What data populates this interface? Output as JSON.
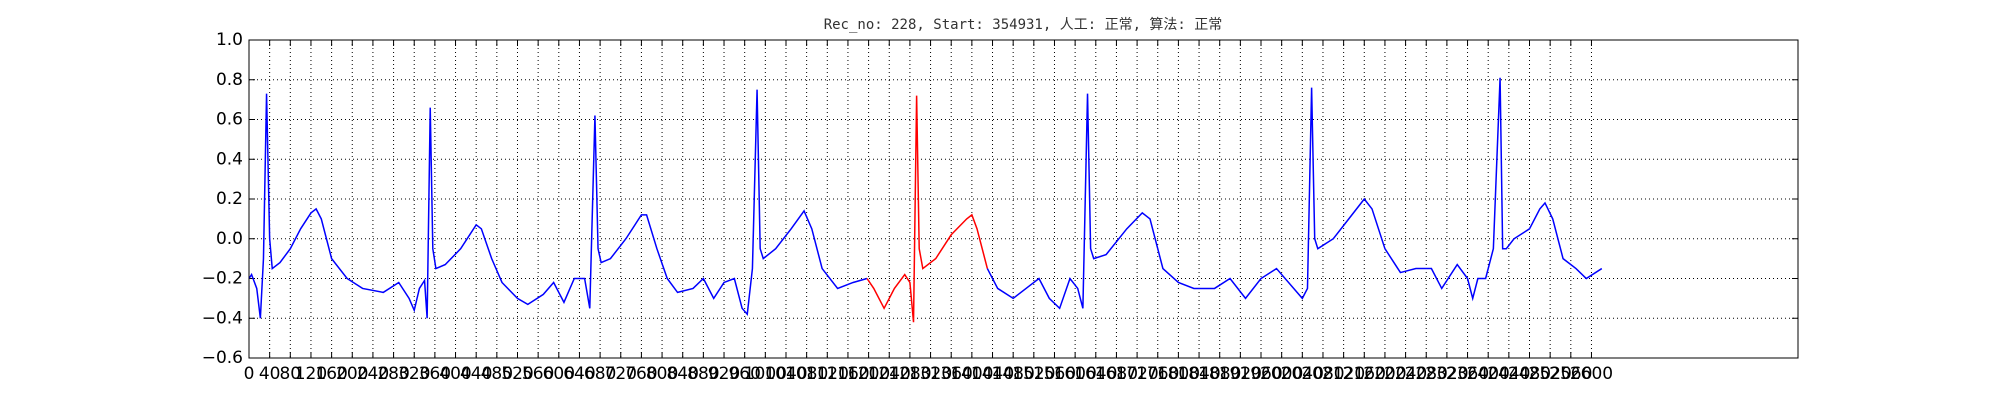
{
  "chart_data": {
    "type": "line",
    "title": "Rec_no: 228, Start: 354931, 人工: 正常, 算法: 正常",
    "xlim": [
      0,
      3000
    ],
    "ylim": [
      -0.6,
      1.0
    ],
    "xticks": [
      0,
      40,
      80,
      120,
      160,
      200,
      240,
      280,
      320,
      360,
      400,
      440,
      480,
      520,
      560,
      600,
      640,
      680,
      720,
      760,
      800,
      840,
      880,
      920,
      960,
      1000,
      1040,
      1080,
      1120,
      1160,
      1200,
      1240,
      1280,
      1320,
      1360,
      1400,
      1440,
      1480,
      1520,
      1560,
      1600,
      1640,
      1680,
      1720,
      1760,
      1800,
      1840,
      1880,
      1920,
      1960,
      2000,
      2040,
      2080,
      2120,
      2160,
      2200,
      2240,
      2280,
      2320,
      2360,
      2400,
      2440,
      2480,
      2520,
      2560,
      2600
    ],
    "yticks": [
      {
        "value": -0.6,
        "label": "−0.6"
      },
      {
        "value": -0.4,
        "label": "−0.4"
      },
      {
        "value": -0.2,
        "label": "−0.2"
      },
      {
        "value": 0.0,
        "label": "0.0"
      },
      0.2,
      0.4,
      0.6,
      0.8,
      {
        "value": 1.0,
        "label": "1.0"
      }
    ],
    "grid": true,
    "series": [
      {
        "color": "#0000ff",
        "x": [
          0,
          5,
          15,
          22,
          28,
          34,
          40,
          45,
          60,
          80,
          100,
          120,
          130,
          140,
          160,
          190,
          220,
          260,
          290,
          310,
          320,
          330,
          340,
          345,
          351,
          356,
          362,
          380,
          410,
          440,
          450,
          470,
          490,
          520,
          540,
          570,
          590,
          610,
          630,
          650,
          660,
          670,
          676,
          682,
          700,
          730,
          760,
          770,
          790,
          810,
          830,
          860,
          880,
          900,
          920,
          940,
          955,
          965,
          975,
          984,
          990,
          996,
          1020,
          1050,
          1075,
          1090,
          1110,
          1140,
          1170,
          1197
        ],
        "values": [
          -0.2,
          -0.18,
          -0.25,
          -0.4,
          -0.1,
          0.73,
          0.0,
          -0.15,
          -0.12,
          -0.05,
          0.05,
          0.13,
          0.15,
          0.1,
          -0.1,
          -0.2,
          -0.25,
          -0.27,
          -0.22,
          -0.3,
          -0.36,
          -0.25,
          -0.21,
          -0.4,
          0.66,
          -0.05,
          -0.15,
          -0.13,
          -0.05,
          0.07,
          0.05,
          -0.1,
          -0.22,
          -0.3,
          -0.33,
          -0.28,
          -0.22,
          -0.32,
          -0.2,
          -0.2,
          -0.35,
          0.62,
          -0.05,
          -0.12,
          -0.1,
          0.0,
          0.12,
          0.12,
          -0.05,
          -0.2,
          -0.27,
          -0.25,
          -0.2,
          -0.3,
          -0.22,
          -0.2,
          -0.35,
          -0.38,
          -0.15,
          0.75,
          -0.05,
          -0.1,
          -0.05,
          0.05,
          0.14,
          0.05,
          -0.15,
          -0.25,
          -0.22,
          -0.2
        ]
      },
      {
        "color": "#ff0000",
        "x": [
          1197,
          1210,
          1230,
          1250,
          1270,
          1280,
          1287,
          1293,
          1298,
          1305,
          1330,
          1360,
          1390,
          1400,
          1410,
          1430
        ],
        "values": [
          -0.2,
          -0.25,
          -0.35,
          -0.25,
          -0.18,
          -0.22,
          -0.42,
          0.72,
          -0.05,
          -0.15,
          -0.1,
          0.02,
          0.1,
          0.12,
          0.05,
          -0.15
        ]
      },
      {
        "color": "#0000ff",
        "x": [
          1430,
          1450,
          1480,
          1510,
          1530,
          1550,
          1570,
          1590,
          1605,
          1615,
          1624,
          1630,
          1636,
          1660,
          1700,
          1730,
          1745,
          1770,
          1800,
          1830,
          1870,
          1900,
          1930,
          1960,
          1990,
          2040,
          2050,
          2058,
          2064,
          2070,
          2100,
          2130,
          2160,
          2175,
          2200,
          2230,
          2260,
          2290,
          2310,
          2340,
          2360,
          2370,
          2380,
          2395,
          2410,
          2423,
          2428,
          2435,
          2450,
          2480,
          2500,
          2510,
          2525,
          2545,
          2570,
          2590,
          2620
        ],
        "values": [
          -0.15,
          -0.25,
          -0.3,
          -0.24,
          -0.2,
          -0.3,
          -0.35,
          -0.2,
          -0.25,
          -0.35,
          0.73,
          -0.05,
          -0.1,
          -0.08,
          0.05,
          0.13,
          0.1,
          -0.15,
          -0.22,
          -0.25,
          -0.25,
          -0.2,
          -0.3,
          -0.2,
          -0.15,
          -0.3,
          -0.25,
          0.76,
          0.0,
          -0.05,
          0.0,
          0.1,
          0.2,
          0.15,
          -0.05,
          -0.17,
          -0.15,
          -0.15,
          -0.25,
          -0.13,
          -0.2,
          -0.3,
          -0.2,
          -0.2,
          -0.05,
          0.81,
          -0.05,
          -0.05,
          0.0,
          0.05,
          0.15,
          0.18,
          0.1,
          -0.1,
          -0.15,
          -0.2,
          -0.15
        ]
      }
    ]
  }
}
